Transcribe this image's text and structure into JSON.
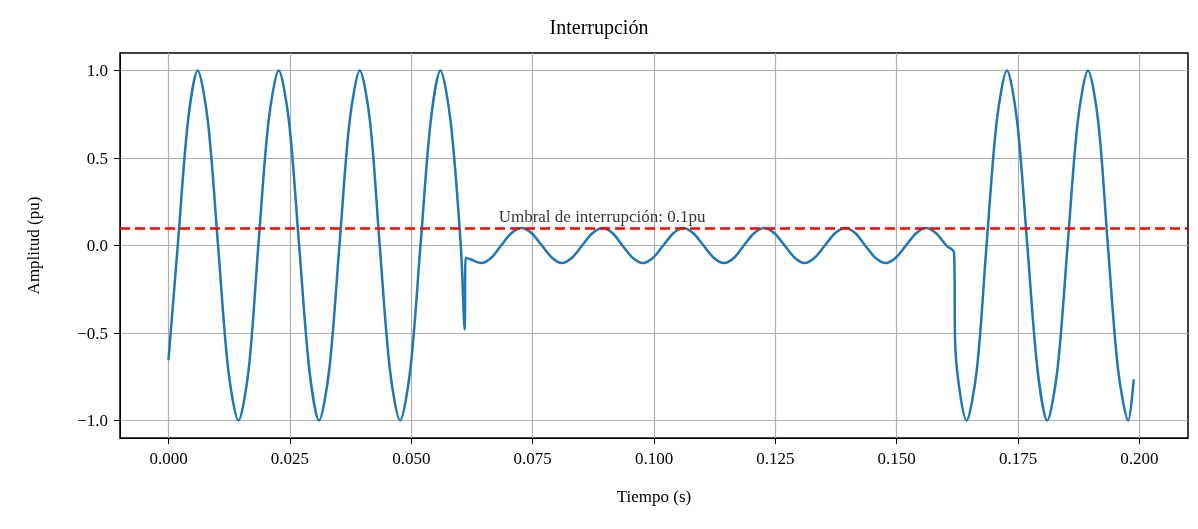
{
  "chart_data": {
    "type": "line",
    "title": "Interrupción",
    "xlabel": "Tiempo (s)",
    "ylabel": "Amplitud (pu)",
    "xlim": [
      -0.01,
      0.21
    ],
    "ylim": [
      -1.1,
      1.1
    ],
    "xticks": [
      {
        "value": 0,
        "label": "0.000"
      },
      {
        "value": 0.025,
        "label": "0.025"
      },
      {
        "value": 0.05,
        "label": "0.050"
      },
      {
        "value": 0.075,
        "label": "0.075"
      },
      {
        "value": 0.1,
        "label": "0.100"
      },
      {
        "value": 0.125,
        "label": "0.125"
      },
      {
        "value": 0.15,
        "label": "0.150"
      },
      {
        "value": 0.175,
        "label": "0.175"
      },
      {
        "value": 0.2,
        "label": "0.200"
      }
    ],
    "yticks": [
      {
        "value": -1,
        "label": "−1.0"
      },
      {
        "value": -0.5,
        "label": "−0.5"
      },
      {
        "value": 0,
        "label": "0.0"
      },
      {
        "value": 0.5,
        "label": "0.5"
      },
      {
        "value": 1,
        "label": "1.0"
      }
    ],
    "grid": true,
    "marker": "none",
    "line_style": "solid",
    "series": [
      {
        "color": "#1f77b4",
        "x": [
          0,
          0.0019,
          0.004,
          0.006,
          0.0081,
          0.0102,
          0.0123,
          0.0144,
          0.0165,
          0.0185,
          0.0206,
          0.0227,
          0.0248,
          0.0269,
          0.029,
          0.031,
          0.0331,
          0.0352,
          0.0373,
          0.0394,
          0.0415,
          0.0435,
          0.0456,
          0.0477,
          0.0498,
          0.0519,
          0.054,
          0.056,
          0.0581,
          0.0602,
          0.061,
          0.0612,
          0.0623,
          0.0644,
          0.0665,
          0.0685,
          0.0706,
          0.0727,
          0.0748,
          0.0769,
          0.079,
          0.081,
          0.0831,
          0.0852,
          0.0873,
          0.0894,
          0.0915,
          0.0935,
          0.0956,
          0.0977,
          0.0998,
          0.1019,
          0.104,
          0.106,
          0.1081,
          0.1102,
          0.1123,
          0.1144,
          0.1165,
          0.1185,
          0.1206,
          0.1227,
          0.1248,
          0.1269,
          0.129,
          0.131,
          0.1331,
          0.1352,
          0.1373,
          0.1394,
          0.1415,
          0.1435,
          0.1456,
          0.1477,
          0.1498,
          0.1519,
          0.154,
          0.156,
          0.1581,
          0.1602,
          0.1618,
          0.1621,
          0.1644,
          0.1665,
          0.1685,
          0.1706,
          0.1727,
          0.1748,
          0.1769,
          0.179,
          0.181,
          0.1831,
          0.1852,
          0.1873,
          0.1894,
          0.1915,
          0.1935,
          0.1956,
          0.1977,
          0.1988
        ],
        "values": [
          -0.65,
          0,
          0.71,
          1,
          0.71,
          0,
          -0.71,
          -1,
          -0.71,
          0,
          0.71,
          1,
          0.71,
          0,
          -0.71,
          -1,
          -0.71,
          0,
          0.71,
          1,
          0.71,
          0,
          -0.71,
          -1,
          -0.71,
          0,
          0.71,
          1,
          0.71,
          0,
          -0.48,
          -0.07,
          -0.08,
          -0.1,
          -0.07,
          0,
          0.07,
          0.1,
          0.07,
          0,
          -0.07,
          -0.1,
          -0.07,
          0,
          0.07,
          0.1,
          0.07,
          0,
          -0.07,
          -0.1,
          -0.07,
          0,
          0.07,
          0.1,
          0.07,
          0,
          -0.07,
          -0.1,
          -0.07,
          0,
          0.07,
          0.1,
          0.07,
          0,
          -0.07,
          -0.1,
          -0.07,
          0,
          0.07,
          0.1,
          0.07,
          0,
          -0.07,
          -0.1,
          -0.07,
          0,
          0.07,
          0.1,
          0.07,
          0,
          -0.04,
          -0.6,
          -1,
          -0.71,
          0,
          0.71,
          1,
          0.71,
          0,
          -0.71,
          -1,
          -0.71,
          0,
          0.71,
          1,
          0.71,
          0,
          -0.71,
          -1,
          -0.77
        ]
      }
    ],
    "ref_lines": [
      {
        "axis": "y",
        "value": 0.1,
        "color": "#ff0000",
        "line_style": "dashed"
      }
    ],
    "annotations": [
      {
        "text": "Umbral de interrupción: 0.1pu",
        "x": 0.068,
        "y": 0.12
      }
    ]
  }
}
